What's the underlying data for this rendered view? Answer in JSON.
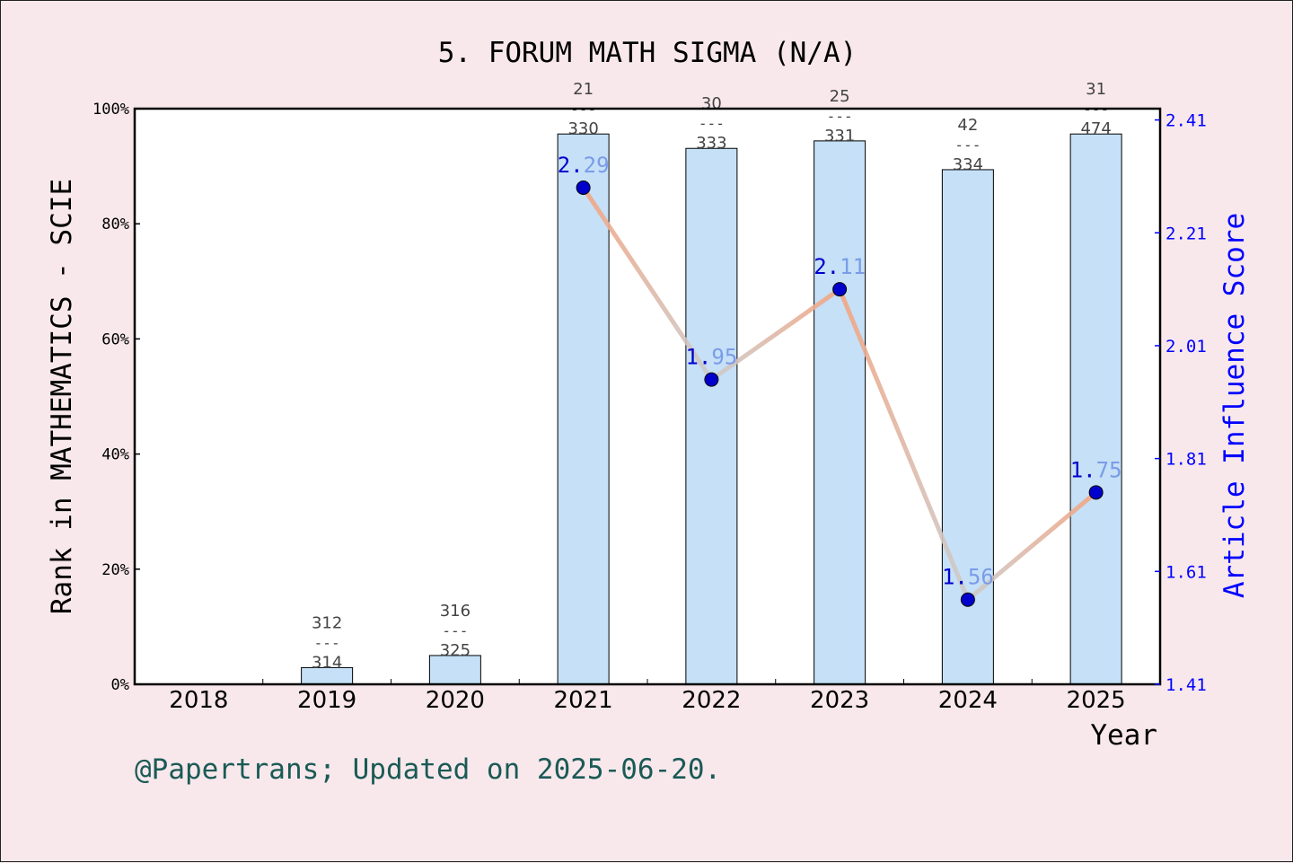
{
  "chart_data": {
    "type": "bar",
    "title": "5. FORUM MATH SIGMA (N/A)",
    "xlabel": "Year",
    "ylabel": "Rank in MATHEMATICS - SCIE",
    "y2label": "Article Influence Score",
    "categories": [
      "2018",
      "2019",
      "2020",
      "2021",
      "2022",
      "2023",
      "2024",
      "2025"
    ],
    "ylim": [
      0,
      100
    ],
    "yticks": [
      "0%",
      "20%",
      "40%",
      "60%",
      "80%",
      "100%"
    ],
    "y2lim": [
      1.41,
      2.43
    ],
    "y2ticks": [
      "1.41",
      "1.61",
      "1.81",
      "2.01",
      "2.21",
      "2.41"
    ],
    "series": [
      {
        "kind": "bar",
        "values": [
          null,
          2.9,
          5.0,
          95.6,
          93.1,
          94.4,
          89.4,
          95.6
        ],
        "rank_labels": [
          null,
          {
            "rank": "312",
            "sep": "---",
            "total": "314"
          },
          {
            "rank": "316",
            "sep": "---",
            "total": "325"
          },
          {
            "rank": "21",
            "sep": "---",
            "total": "330"
          },
          {
            "rank": "30",
            "sep": "---",
            "total": "333"
          },
          {
            "rank": "25",
            "sep": "---",
            "total": "331"
          },
          {
            "rank": "42",
            "sep": "---",
            "total": "334"
          },
          {
            "rank": "31",
            "sep": "---",
            "total": "474"
          }
        ]
      },
      {
        "kind": "line",
        "axis": "right",
        "values": [
          null,
          null,
          null,
          2.29,
          1.95,
          2.11,
          1.56,
          1.75
        ],
        "labels": [
          null,
          null,
          null,
          "2.29",
          "1.95",
          "2.11",
          "1.56",
          "1.75"
        ]
      }
    ],
    "colors": {
      "bar_fill": "#c5e0f7",
      "line_up": "#f4a582",
      "line_down": "#cccccc",
      "marker": "#0000cc",
      "right_axis": "#0000ff",
      "footer": "#1a5a55"
    },
    "grid": false
  },
  "footer": {
    "text": "@Papertrans; Updated on 2025-06-20."
  }
}
